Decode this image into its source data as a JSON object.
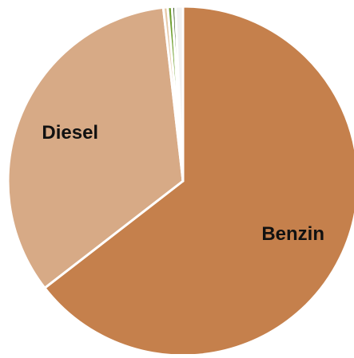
{
  "chart_data": {
    "type": "pie",
    "categories": [
      "Benzin",
      "Diesel",
      null,
      null,
      null,
      null
    ],
    "values": [
      64.5,
      33.7,
      0.4,
      0.4,
      0.3,
      0.7
    ],
    "colors": [
      "#c5804c",
      "#d7aa86",
      "#e6c9a8",
      "#70a030",
      "#3d5a22",
      "#f2f2f2"
    ]
  }
}
